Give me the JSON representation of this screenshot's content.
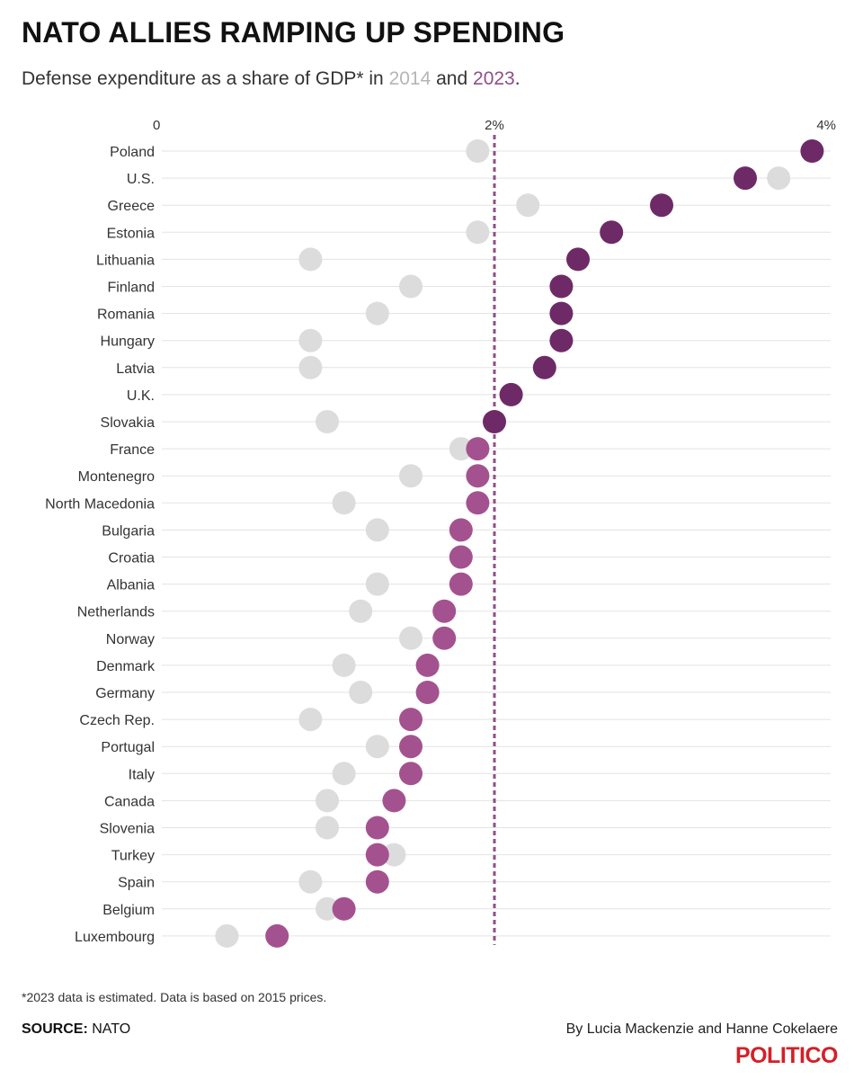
{
  "header": {
    "title": "NATO ALLIES RAMPING UP SPENDING",
    "subtitle_pre": "Defense expenditure as a share of GDP* in ",
    "subtitle_year1": "2014",
    "subtitle_mid": " and ",
    "subtitle_year2": "2023",
    "subtitle_post": "."
  },
  "footer": {
    "note": "*2023 data is estimated. Data is based on 2015 prices.",
    "source_label": "SOURCE:",
    "source_value": " NATO",
    "byline": "By Lucia Mackenzie and Hanne Cokelaere",
    "logo": "POLITICO"
  },
  "colors": {
    "y2014": "#dcdcdc",
    "y2023_above": "#6e2a66",
    "y2023_below": "#a4528f",
    "reference_line": "#8e4f86",
    "grid": "#e3e3e3"
  },
  "chart_data": {
    "type": "dot",
    "title": "NATO ALLIES RAMPING UP SPENDING",
    "unit": "% of GDP",
    "xlim": [
      0,
      4
    ],
    "ticks": [
      {
        "value": 0,
        "label": "0"
      },
      {
        "value": 2,
        "label": "2%"
      },
      {
        "value": 4,
        "label": "4%"
      }
    ],
    "reference_line": 2,
    "series": [
      {
        "name": "2014",
        "key": "y2014"
      },
      {
        "name": "2023",
        "key": "y2023"
      }
    ],
    "rows": [
      {
        "country": "Poland",
        "y2014": 1.9,
        "y2023": 3.9
      },
      {
        "country": "U.S.",
        "y2014": 3.7,
        "y2023": 3.5
      },
      {
        "country": "Greece",
        "y2014": 2.2,
        "y2023": 3.0
      },
      {
        "country": "Estonia",
        "y2014": 1.9,
        "y2023": 2.7
      },
      {
        "country": "Lithuania",
        "y2014": 0.9,
        "y2023": 2.5
      },
      {
        "country": "Finland",
        "y2014": 1.5,
        "y2023": 2.4
      },
      {
        "country": "Romania",
        "y2014": 1.3,
        "y2023": 2.4
      },
      {
        "country": "Hungary",
        "y2014": 0.9,
        "y2023": 2.4
      },
      {
        "country": "Latvia",
        "y2014": 0.9,
        "y2023": 2.3
      },
      {
        "country": "U.K.",
        "y2014": 2.1,
        "y2023": 2.1
      },
      {
        "country": "Slovakia",
        "y2014": 1.0,
        "y2023": 2.0
      },
      {
        "country": "France",
        "y2014": 1.8,
        "y2023": 1.9
      },
      {
        "country": "Montenegro",
        "y2014": 1.5,
        "y2023": 1.9
      },
      {
        "country": "North Macedonia",
        "y2014": 1.1,
        "y2023": 1.9
      },
      {
        "country": "Bulgaria",
        "y2014": 1.3,
        "y2023": 1.8
      },
      {
        "country": "Croatia",
        "y2014": 1.8,
        "y2023": 1.8
      },
      {
        "country": "Albania",
        "y2014": 1.3,
        "y2023": 1.8
      },
      {
        "country": "Netherlands",
        "y2014": 1.2,
        "y2023": 1.7
      },
      {
        "country": "Norway",
        "y2014": 1.5,
        "y2023": 1.7
      },
      {
        "country": "Denmark",
        "y2014": 1.1,
        "y2023": 1.6
      },
      {
        "country": "Germany",
        "y2014": 1.2,
        "y2023": 1.6
      },
      {
        "country": "Czech Rep.",
        "y2014": 0.9,
        "y2023": 1.5
      },
      {
        "country": "Portugal",
        "y2014": 1.3,
        "y2023": 1.5
      },
      {
        "country": "Italy",
        "y2014": 1.1,
        "y2023": 1.5
      },
      {
        "country": "Canada",
        "y2014": 1.0,
        "y2023": 1.4
      },
      {
        "country": "Slovenia",
        "y2014": 1.0,
        "y2023": 1.3
      },
      {
        "country": "Turkey",
        "y2014": 1.4,
        "y2023": 1.3
      },
      {
        "country": "Spain",
        "y2014": 0.9,
        "y2023": 1.3
      },
      {
        "country": "Belgium",
        "y2014": 1.0,
        "y2023": 1.1
      },
      {
        "country": "Luxembourg",
        "y2014": 0.4,
        "y2023": 0.7
      }
    ]
  }
}
